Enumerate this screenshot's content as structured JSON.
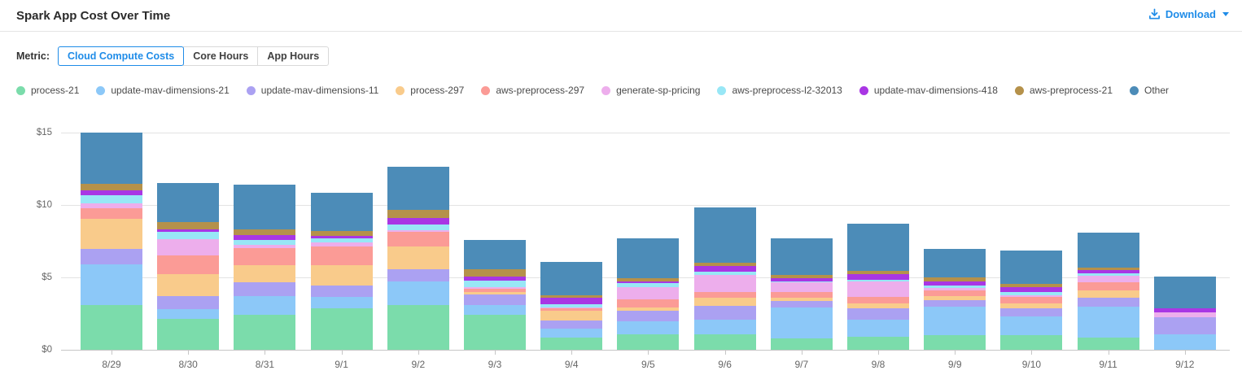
{
  "header": {
    "title": "Spark App Cost Over Time",
    "download_label": "Download"
  },
  "metric": {
    "label": "Metric:",
    "options": [
      {
        "label": "Cloud Compute Costs",
        "selected": true
      },
      {
        "label": "Core Hours",
        "selected": false
      },
      {
        "label": "App Hours",
        "selected": false
      }
    ]
  },
  "colors": {
    "accent": "#1f8ce8",
    "title_text": "#2b2b2b",
    "legend_text": "#4a4a4a",
    "axis_text": "#666666",
    "gridline": "#e3e3e3",
    "axis_line": "#c6c6c6",
    "divider": "#e4e4e4",
    "background": "#ffffff"
  },
  "chart_data": {
    "type": "bar",
    "stacked": true,
    "title": "Spark App Cost Over Time",
    "xlabel": "",
    "ylabel": "",
    "yticks": [
      0,
      5,
      10,
      15
    ],
    "ytick_labels": [
      "$0",
      "$5",
      "$10",
      "$15"
    ],
    "ylim": [
      0,
      15.9
    ],
    "grid": "horizontal",
    "legend_position": "top",
    "categories": [
      "8/29",
      "8/30",
      "8/31",
      "9/1",
      "9/2",
      "9/3",
      "9/4",
      "9/5",
      "9/6",
      "9/7",
      "9/8",
      "9/9",
      "9/10",
      "9/11",
      "9/12"
    ],
    "series": [
      {
        "name": "process-21",
        "color": "#7bdcab",
        "values": [
          3.15,
          2.2,
          2.45,
          2.95,
          3.15,
          2.5,
          0.9,
          1.1,
          1.1,
          0.85,
          0.95,
          1.05,
          1.05,
          0.9,
          0.0
        ]
      },
      {
        "name": "update-mav-dimensions-21",
        "color": "#8cc8f8",
        "values": [
          2.8,
          0.65,
          1.3,
          0.75,
          1.6,
          0.65,
          0.6,
          0.9,
          1.05,
          2.15,
          1.2,
          2.0,
          1.3,
          2.15,
          1.15
        ]
      },
      {
        "name": "update-mav-dimensions-11",
        "color": "#aba1f2",
        "values": [
          1.05,
          0.9,
          0.95,
          0.8,
          0.85,
          0.7,
          0.6,
          0.75,
          0.95,
          0.45,
          0.8,
          0.45,
          0.6,
          0.6,
          1.15
        ]
      },
      {
        "name": "process-297",
        "color": "#f9cb8b",
        "values": [
          2.1,
          1.55,
          1.2,
          1.4,
          1.6,
          0.2,
          0.65,
          0.25,
          0.55,
          0.2,
          0.3,
          0.25,
          0.3,
          0.5,
          0.0
        ]
      },
      {
        "name": "aws-preprocess-297",
        "color": "#fb9b96",
        "values": [
          0.75,
          1.3,
          1.2,
          1.3,
          1.0,
          0.2,
          0.15,
          0.55,
          0.4,
          0.4,
          0.45,
          0.4,
          0.45,
          0.55,
          0.0
        ]
      },
      {
        "name": "generate-sp-pricing",
        "color": "#edaeec",
        "values": [
          0.3,
          1.1,
          0.2,
          0.3,
          0.1,
          0.15,
          0.1,
          0.85,
          1.2,
          0.65,
          1.1,
          0.15,
          0.1,
          0.45,
          0.35
        ]
      },
      {
        "name": "aws-preprocess-l2-32013",
        "color": "#98e7f6",
        "values": [
          0.6,
          0.5,
          0.35,
          0.25,
          0.4,
          0.45,
          0.2,
          0.25,
          0.2,
          0.1,
          0.1,
          0.2,
          0.25,
          0.2,
          0.0
        ]
      },
      {
        "name": "update-mav-dimensions-418",
        "color": "#a936e4",
        "values": [
          0.3,
          0.15,
          0.35,
          0.15,
          0.45,
          0.25,
          0.45,
          0.15,
          0.4,
          0.2,
          0.4,
          0.3,
          0.35,
          0.2,
          0.25
        ]
      },
      {
        "name": "aws-preprocess-21",
        "color": "#b5914a",
        "values": [
          0.45,
          0.5,
          0.35,
          0.35,
          0.55,
          0.5,
          0.15,
          0.2,
          0.2,
          0.2,
          0.2,
          0.25,
          0.2,
          0.2,
          0.0
        ]
      },
      {
        "name": "Other",
        "color": "#4c8cb8",
        "values": [
          3.55,
          2.7,
          3.1,
          2.65,
          3.0,
          2.05,
          2.35,
          2.75,
          3.85,
          2.55,
          3.25,
          2.0,
          2.3,
          2.4,
          2.2
        ]
      }
    ]
  }
}
